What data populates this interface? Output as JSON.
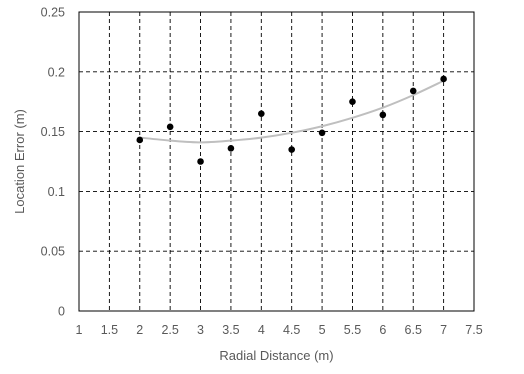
{
  "chart_data": {
    "type": "scatter",
    "title": "",
    "xlabel": "Radial Distance (m)",
    "ylabel": "Location Error (m)",
    "xlim": [
      1,
      7.5
    ],
    "ylim": [
      0,
      0.25
    ],
    "x_ticks": [
      1,
      1.5,
      2,
      2.5,
      3,
      3.5,
      4,
      4.5,
      5,
      5.5,
      6,
      6.5,
      7,
      7.5
    ],
    "x_tick_labels": [
      "1",
      "1.5",
      "2",
      "2.5",
      "3",
      "3.5",
      "4",
      "4.5",
      "5",
      "5.5",
      "6",
      "6.5",
      "7",
      "7.5"
    ],
    "y_ticks": [
      0,
      0.05,
      0.1,
      0.15,
      0.2,
      0.25
    ],
    "y_tick_labels": [
      "0",
      "0.05",
      "0.1",
      "0.15",
      "0.2",
      "0.25"
    ],
    "grid": true,
    "grid_style": "dashed",
    "legend": "none",
    "series": [
      {
        "type": "scatter",
        "color": "#000000",
        "x": [
          2,
          2.5,
          3,
          3.5,
          4,
          4.5,
          5,
          5.5,
          6,
          6.5,
          7
        ],
        "y": [
          0.143,
          0.154,
          0.125,
          0.136,
          0.165,
          0.135,
          0.149,
          0.175,
          0.164,
          0.184,
          0.194
        ]
      },
      {
        "type": "line",
        "color": "#bfbfbf",
        "x": [
          2,
          2.5,
          3,
          3.5,
          4,
          4.5,
          5,
          5.5,
          6,
          6.5,
          7
        ],
        "y": [
          0.145,
          0.1425,
          0.141,
          0.1425,
          0.145,
          0.149,
          0.1545,
          0.1615,
          0.17,
          0.1805,
          0.1925
        ]
      }
    ]
  }
}
